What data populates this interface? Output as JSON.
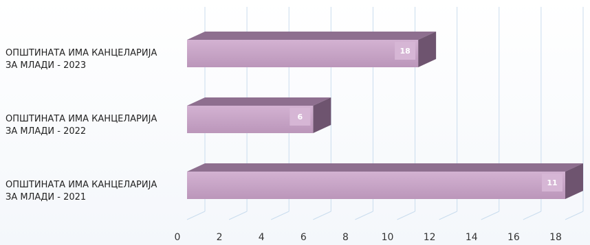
{
  "chart_data": {
    "type": "bar",
    "orientation": "horizontal",
    "categories": [
      [
        "ОПШТИНАТА ИМА КАНЦЕЛАРИЈА",
        "ЗА МЛАДИ - 2023"
      ],
      [
        "ОПШТИНАТА ИМА КАНЦЕЛАРИЈА",
        "ЗА МЛАДИ - 2022"
      ],
      [
        "ОПШТИНАТА ИМА КАНЦЕЛАРИЈА",
        "ЗА МЛАДИ - 2021"
      ]
    ],
    "values": [
      11,
      6,
      18
    ],
    "value_labels": [
      "18",
      "6",
      "11"
    ],
    "xlim": [
      0,
      18
    ],
    "xticks": [
      "0",
      "2",
      "4",
      "6",
      "8",
      "10",
      "12",
      "14",
      "16",
      "18"
    ],
    "grid": true,
    "style": "3d",
    "colors": {
      "bar_front": "#c7a3c6",
      "bar_top": "#8e6f8f",
      "bar_side": "#6e546f",
      "label_box": "#d6b6d5",
      "grid": "#c9dcee"
    }
  }
}
